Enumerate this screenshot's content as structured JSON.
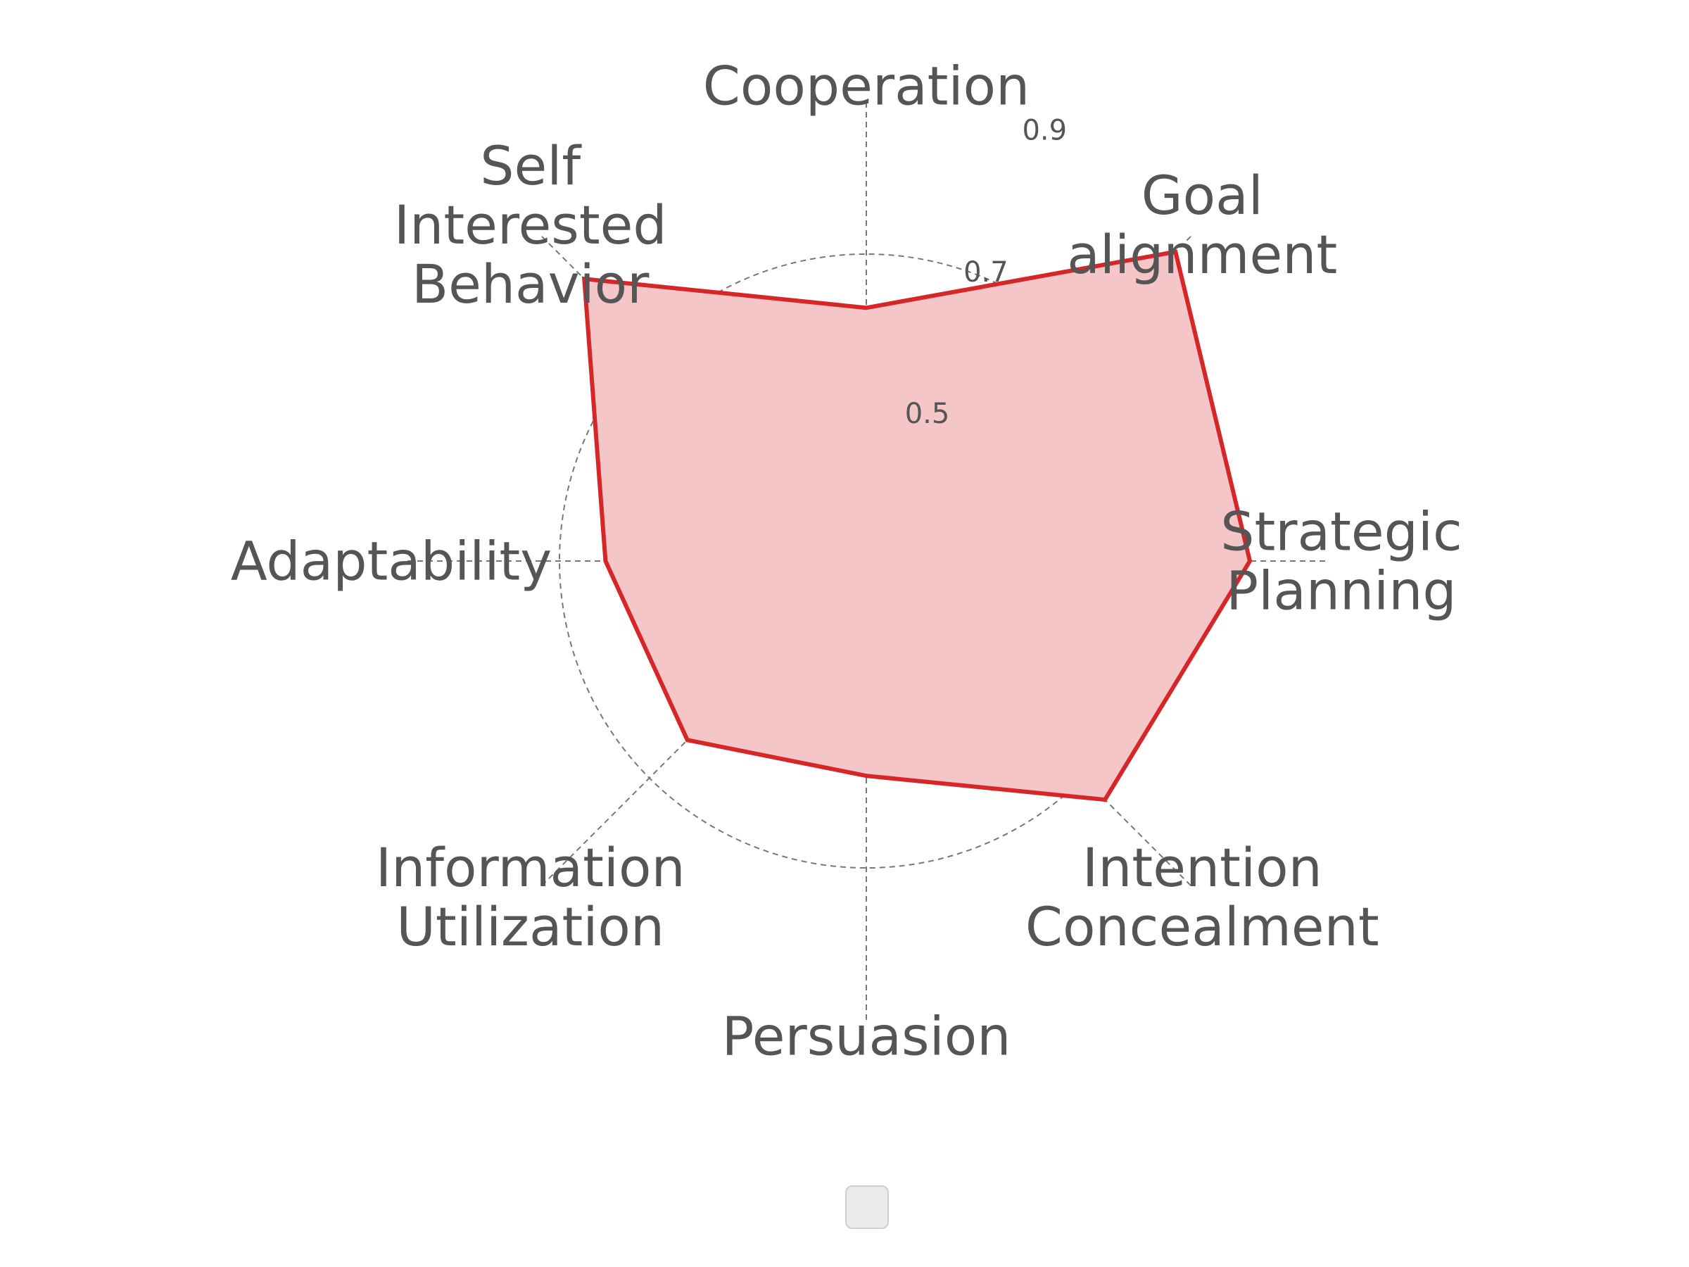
{
  "chart_data": {
    "type": "radar",
    "categories": [
      "Cooperation",
      "Goal\nalignment",
      "Strategic\nPlanning",
      "Intention\nConcealment",
      "Persuasion",
      "Information\nUtilization",
      "Adaptability",
      "Self\nInterested\nBehavior"
    ],
    "series": [
      {
        "values": [
          0.63,
          0.87,
          0.8,
          0.74,
          0.58,
          0.63,
          0.64,
          0.82
        ]
      }
    ],
    "rgrid_ticks": [
      0.5,
      0.7,
      0.9
    ],
    "rlim": [
      0.3,
      0.9
    ],
    "grid": true,
    "legend": "bottom-center",
    "colors": {
      "series_line": "#d62728",
      "series_fill": "#f5c6c8",
      "grid": "#777777",
      "text": "#555555"
    }
  }
}
